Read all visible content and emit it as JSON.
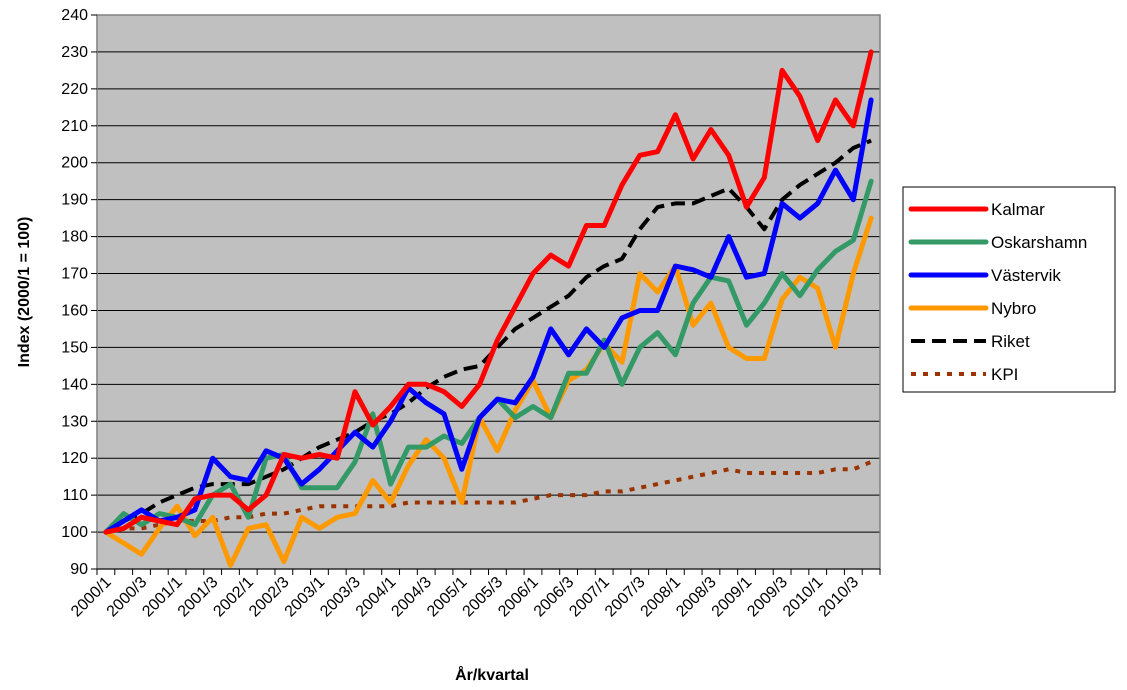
{
  "chart_data": {
    "type": "line",
    "xlabel": "År/kvartal",
    "ylabel": "Index (2000/1 = 100)",
    "ylim": [
      90,
      240
    ],
    "yticks": [
      90,
      100,
      110,
      120,
      130,
      140,
      150,
      160,
      170,
      180,
      190,
      200,
      210,
      220,
      230,
      240
    ],
    "grid": "horizontal",
    "legend_position": "right",
    "x": [
      "2000/1",
      "2000/2",
      "2000/3",
      "2000/4",
      "2001/1",
      "2001/2",
      "2001/3",
      "2001/4",
      "2002/1",
      "2002/2",
      "2002/3",
      "2002/4",
      "2003/1",
      "2003/2",
      "2003/3",
      "2003/4",
      "2004/1",
      "2004/2",
      "2004/3",
      "2004/4",
      "2005/1",
      "2005/2",
      "2005/3",
      "2005/4",
      "2006/1",
      "2006/2",
      "2006/3",
      "2006/4",
      "2007/1",
      "2007/2",
      "2007/3",
      "2007/4",
      "2008/1",
      "2008/2",
      "2008/3",
      "2008/4",
      "2009/1",
      "2009/2",
      "2009/3",
      "2009/4",
      "2010/1",
      "2010/2",
      "2010/3",
      "2010/4"
    ],
    "x_tick_labels": [
      "2000/1",
      "2000/3",
      "2001/1",
      "2001/3",
      "2002/1",
      "2002/3",
      "2003/1",
      "2003/3",
      "2004/1",
      "2004/3",
      "2005/1",
      "2005/3",
      "2006/1",
      "2006/3",
      "2007/1",
      "2007/3",
      "2008/1",
      "2008/3",
      "2009/1",
      "2009/3",
      "2010/1",
      "2010/3"
    ],
    "series": [
      {
        "name": "Kalmar",
        "color": "#ff0000",
        "style": "solid",
        "values": [
          100,
          101,
          104,
          103,
          102,
          109,
          110,
          110,
          106,
          110,
          121,
          120,
          121,
          120,
          138,
          129,
          134,
          140,
          140,
          138,
          134,
          140,
          152,
          161,
          170,
          175,
          172,
          183,
          183,
          194,
          202,
          203,
          213,
          201,
          209,
          202,
          188,
          196,
          225,
          218,
          206,
          217,
          210,
          230
        ]
      },
      {
        "name": "Oskarshamn",
        "color": "#339966",
        "style": "solid",
        "values": [
          100,
          105,
          102,
          105,
          104,
          102,
          110,
          113,
          104,
          120,
          121,
          112,
          112,
          112,
          119,
          132,
          113,
          123,
          123,
          126,
          124,
          131,
          136,
          131,
          134,
          131,
          143,
          143,
          152,
          140,
          150,
          154,
          148,
          162,
          169,
          168,
          156,
          162,
          170,
          164,
          171,
          176,
          179,
          195
        ]
      },
      {
        "name": "Västervik",
        "color": "#0000ff",
        "style": "solid",
        "values": [
          100,
          103,
          106,
          103,
          104,
          106,
          120,
          115,
          114,
          122,
          120,
          113,
          117,
          122,
          127,
          123,
          130,
          139,
          135,
          132,
          117,
          131,
          136,
          135,
          142,
          155,
          148,
          155,
          150,
          158,
          160,
          160,
          172,
          171,
          169,
          180,
          169,
          170,
          189,
          185,
          189,
          198,
          190,
          217
        ]
      },
      {
        "name": "Nybro",
        "color": "#ff9900",
        "style": "solid",
        "values": [
          100,
          97,
          94,
          101,
          107,
          99,
          104,
          91,
          101,
          102,
          92,
          104,
          101,
          104,
          105,
          114,
          108,
          118,
          125,
          120,
          108,
          131,
          122,
          133,
          141,
          131,
          141,
          144,
          151,
          146,
          170,
          165,
          172,
          156,
          162,
          150,
          147,
          147,
          163,
          169,
          166,
          150,
          170,
          185
        ]
      },
      {
        "name": "Riket",
        "color": "#000000",
        "style": "dashed",
        "values": [
          100,
          103,
          105,
          108,
          110,
          112,
          113,
          113,
          113,
          115,
          117,
          120,
          123,
          125,
          127,
          130,
          132,
          135,
          139,
          142,
          144,
          145,
          150,
          155,
          158,
          161,
          164,
          169,
          172,
          174,
          182,
          188,
          189,
          189,
          191,
          193,
          188,
          182,
          190,
          194,
          197,
          200,
          204,
          206
        ]
      },
      {
        "name": "KPI",
        "color": "#993300",
        "style": "dotted",
        "values": [
          100,
          101,
          101,
          102,
          103,
          103,
          103,
          104,
          104,
          105,
          105,
          106,
          107,
          107,
          107,
          107,
          107,
          108,
          108,
          108,
          108,
          108,
          108,
          108,
          109,
          110,
          110,
          110,
          111,
          111,
          112,
          113,
          114,
          115,
          116,
          117,
          116,
          116,
          116,
          116,
          116,
          117,
          117,
          119
        ]
      }
    ]
  }
}
